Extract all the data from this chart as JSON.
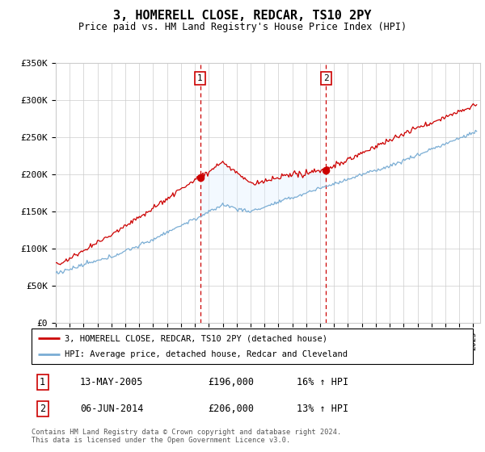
{
  "title": "3, HOMERELL CLOSE, REDCAR, TS10 2PY",
  "subtitle": "Price paid vs. HM Land Registry's House Price Index (HPI)",
  "footer": "Contains HM Land Registry data © Crown copyright and database right 2024.\nThis data is licensed under the Open Government Licence v3.0.",
  "legend_line1": "3, HOMERELL CLOSE, REDCAR, TS10 2PY (detached house)",
  "legend_line2": "HPI: Average price, detached house, Redcar and Cleveland",
  "transaction1_date": "13-MAY-2005",
  "transaction1_price": "£196,000",
  "transaction1_hpi": "16% ↑ HPI",
  "transaction1_year": 2005.37,
  "transaction2_date": "06-JUN-2014",
  "transaction2_price": "£206,000",
  "transaction2_hpi": "13% ↑ HPI",
  "transaction2_year": 2014.43,
  "red_color": "#cc0000",
  "blue_color": "#7aadd4",
  "shade_color": "#ddeeff",
  "grid_color": "#cccccc",
  "xmin": 1995,
  "xmax": 2025.5,
  "ymin": 0,
  "ymax": 350000,
  "yticks": [
    0,
    50000,
    100000,
    150000,
    200000,
    250000,
    300000,
    350000
  ],
  "ytick_labels": [
    "£0",
    "£50K",
    "£100K",
    "£150K",
    "£200K",
    "£250K",
    "£300K",
    "£350K"
  ]
}
